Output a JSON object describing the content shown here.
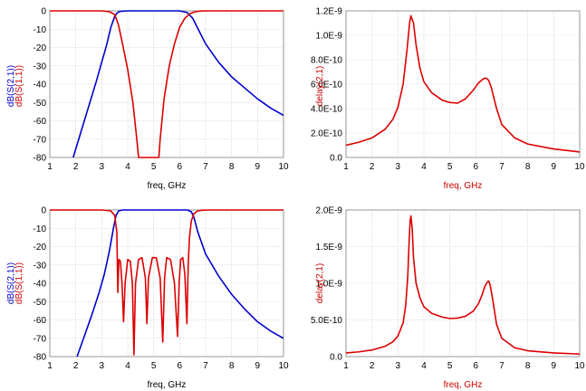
{
  "chart_data": [
    {
      "type": "line",
      "xlabel": "freq, GHz",
      "ylabels": [
        "dB(S(2,1))",
        "dB(S(1,1))"
      ],
      "xlim": [
        1,
        10
      ],
      "ylim": [
        -80,
        0
      ],
      "xticks": [
        "1",
        "2",
        "3",
        "4",
        "5",
        "6",
        "7",
        "8",
        "9",
        "10"
      ],
      "yticks": [
        "0",
        "-10",
        "-20",
        "-30",
        "-40",
        "-50",
        "-60",
        "-70",
        "-80"
      ],
      "grid": true,
      "colors": [
        "#0000cc",
        "#dd0000"
      ],
      "series": [
        {
          "x": [
            1.9,
            2.2,
            2.5,
            2.8,
            3.0,
            3.2,
            3.35,
            3.5,
            3.6,
            3.7,
            4.0,
            5.0,
            6.0,
            6.3,
            6.5,
            7.0,
            7.5,
            8.0,
            8.5,
            9.0,
            9.5,
            10.0
          ],
          "y": [
            -80,
            -66,
            -52,
            -38,
            -28,
            -18,
            -9,
            -3,
            -1,
            -0.3,
            0,
            0,
            0,
            -1,
            -4,
            -18,
            -28,
            -36,
            -42,
            -48,
            -53,
            -57
          ]
        },
        {
          "x": [
            1,
            2,
            3,
            3.3,
            3.5,
            3.65,
            3.8,
            4.0,
            4.2,
            4.35,
            4.42,
            4.45,
            5.2,
            5.25,
            5.4,
            5.6,
            5.8,
            6.0,
            6.2,
            6.4,
            6.6,
            6.8,
            7.0,
            8,
            9,
            10
          ],
          "y": [
            0,
            0,
            0,
            -0.5,
            -2,
            -8,
            -18,
            -32,
            -50,
            -70,
            -80,
            -80,
            -80,
            -70,
            -48,
            -30,
            -18,
            -9,
            -4,
            -1.5,
            -0.5,
            -0.1,
            0,
            0,
            0,
            0
          ]
        }
      ]
    },
    {
      "type": "line",
      "xlabel": "freq, GHz",
      "ylabel": "delay(2,1)",
      "xlim": [
        1,
        10
      ],
      "ylim": [
        0,
        1.2e-09
      ],
      "xticks": [
        "1",
        "2",
        "3",
        "4",
        "5",
        "6",
        "7",
        "8",
        "9",
        "10"
      ],
      "yticks": [
        "0.0",
        "2.0E-10",
        "4.0E-10",
        "6.0E-10",
        "8.0E-10",
        "1.0E-9",
        "1.2E-9"
      ],
      "grid": true,
      "colors": [
        "#dd0000"
      ],
      "series": [
        {
          "x": [
            1.0,
            1.5,
            2.0,
            2.5,
            2.8,
            3.0,
            3.2,
            3.35,
            3.45,
            3.5,
            3.6,
            3.7,
            3.85,
            4.0,
            4.3,
            4.7,
            5.0,
            5.3,
            5.6,
            5.9,
            6.1,
            6.3,
            6.4,
            6.5,
            6.6,
            6.8,
            7.0,
            7.5,
            8.0,
            9.0,
            10.0
          ],
          "y": [
            1e-10,
            1.25e-10,
            1.6e-10,
            2.3e-10,
            3.1e-10,
            4.1e-10,
            6e-10,
            8.8e-10,
            1.1e-09,
            1.16e-09,
            1.1e-09,
            9.2e-10,
            7.3e-10,
            6.2e-10,
            5.3e-10,
            4.7e-10,
            4.5e-10,
            4.45e-10,
            4.8e-10,
            5.5e-10,
            6.1e-10,
            6.45e-10,
            6.5e-10,
            6.3e-10,
            5.7e-10,
            4e-10,
            2.7e-10,
            1.6e-10,
            1.1e-10,
            7e-11,
            4.5e-11
          ]
        }
      ]
    },
    {
      "type": "line",
      "xlabel": "freq, GHz",
      "ylabels": [
        "dB(S(2,1))",
        "dB(S(1,1))"
      ],
      "xlim": [
        1,
        10
      ],
      "ylim": [
        -80,
        0
      ],
      "xticks": [
        "1",
        "2",
        "3",
        "4",
        "5",
        "6",
        "7",
        "8",
        "9",
        "10"
      ],
      "yticks": [
        "0",
        "-10",
        "-20",
        "-30",
        "-40",
        "-50",
        "-60",
        "-70",
        "-80"
      ],
      "grid": true,
      "colors": [
        "#0000cc",
        "#dd0000"
      ],
      "series": [
        {
          "x": [
            2.05,
            2.3,
            2.6,
            2.9,
            3.1,
            3.3,
            3.45,
            3.55,
            3.65,
            3.8,
            5.0,
            6.3,
            6.45,
            6.55,
            6.7,
            7.0,
            7.5,
            8.0,
            8.5,
            9.0,
            9.5,
            10.0
          ],
          "y": [
            -80,
            -70,
            -58,
            -45,
            -35,
            -22,
            -10,
            -3,
            -0.5,
            0,
            0,
            0,
            -1,
            -4,
            -12,
            -24,
            -36,
            -46,
            -54,
            -61,
            -66,
            -70
          ]
        },
        {
          "x": [
            1,
            2,
            3,
            3.35,
            3.5,
            3.58,
            3.62,
            3.66,
            3.72,
            3.78,
            3.84,
            3.9,
            4.0,
            4.1,
            4.18,
            4.24,
            4.3,
            4.42,
            4.55,
            4.68,
            4.74,
            4.8,
            4.95,
            5.1,
            5.25,
            5.35,
            5.42,
            5.5,
            5.65,
            5.8,
            5.92,
            5.98,
            6.04,
            6.12,
            6.2,
            6.28,
            6.33,
            6.38,
            6.45,
            6.55,
            6.7,
            6.9,
            7.2,
            8,
            9,
            10
          ],
          "y": [
            0,
            0,
            0,
            -0.5,
            -3,
            -12,
            -45,
            -27,
            -28,
            -40,
            -61,
            -40,
            -27,
            -28,
            -40,
            -79,
            -40,
            -27,
            -26,
            -37,
            -62,
            -37,
            -26,
            -26,
            -37,
            -72,
            -37,
            -26,
            -27,
            -40,
            -69,
            -40,
            -27,
            -26,
            -35,
            -62,
            -30,
            -15,
            -6,
            -2,
            -0.5,
            -0.1,
            0,
            0,
            0,
            0
          ]
        }
      ]
    },
    {
      "type": "line",
      "xlabel": "freq, GHz",
      "ylabel": "delay(2,1)",
      "xlim": [
        1,
        10
      ],
      "ylim": [
        0,
        2e-09
      ],
      "xticks": [
        "1",
        "2",
        "3",
        "4",
        "5",
        "6",
        "7",
        "8",
        "9",
        "10"
      ],
      "yticks": [
        "0.0",
        "5.0E-10",
        "1.0E-9",
        "1.5E-9",
        "2.0E-9"
      ],
      "grid": true,
      "colors": [
        "#dd0000"
      ],
      "series": [
        {
          "x": [
            1.0,
            1.5,
            2.0,
            2.5,
            2.8,
            3.0,
            3.2,
            3.3,
            3.38,
            3.43,
            3.47,
            3.5,
            3.55,
            3.6,
            3.7,
            3.85,
            4.0,
            4.3,
            4.7,
            5.0,
            5.3,
            5.6,
            5.9,
            6.1,
            6.25,
            6.35,
            6.45,
            6.5,
            6.55,
            6.65,
            6.8,
            7.0,
            7.5,
            8.0,
            9.0,
            10.0
          ],
          "y": [
            5e-11,
            6.5e-11,
            9e-11,
            1.4e-10,
            2e-10,
            2.8e-10,
            4.6e-10,
            7e-10,
            1.1e-09,
            1.55e-09,
            1.85e-09,
            1.92e-09,
            1.75e-09,
            1.35e-09,
            1e-09,
            8e-10,
            6.8e-10,
            5.9e-10,
            5.4e-10,
            5.2e-10,
            5.25e-10,
            5.5e-10,
            6.2e-10,
            7.2e-10,
            8.5e-10,
            9.6e-10,
            1.02e-09,
            1.03e-09,
            9.8e-10,
            7.8e-10,
            4.4e-10,
            2.5e-10,
            1.2e-10,
            8e-11,
            5e-11,
            3.5e-11
          ]
        }
      ]
    }
  ]
}
